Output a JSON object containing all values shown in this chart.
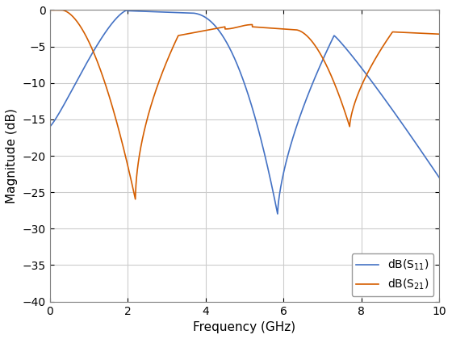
{
  "title": "",
  "xlabel": "Frequency (GHz)",
  "ylabel": "Magnitude (dB)",
  "xlim": [
    0,
    10
  ],
  "ylim": [
    -40,
    0
  ],
  "yticks": [
    0,
    -5,
    -10,
    -15,
    -20,
    -25,
    -30,
    -35,
    -40
  ],
  "xticks": [
    0,
    2,
    4,
    6,
    8,
    10
  ],
  "color_s11": "#4472C4",
  "color_s21": "#D55E00",
  "background_color": "#FFFFFF",
  "grid_color": "#CCCCCC"
}
